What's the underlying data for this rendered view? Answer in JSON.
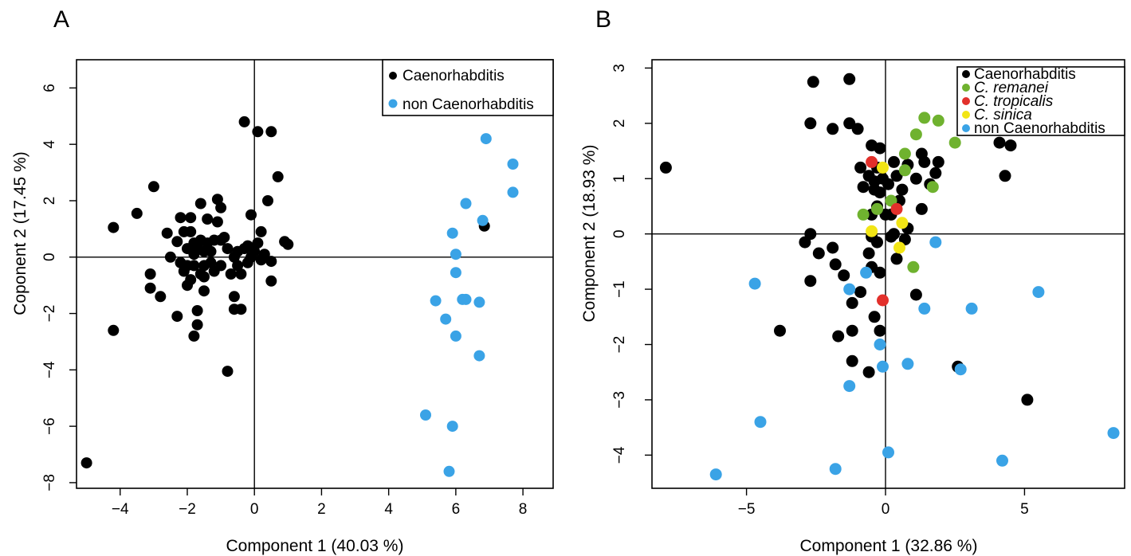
{
  "chart_data": [
    {
      "type": "scatter",
      "panel_label": "A",
      "title": "",
      "xlabel": "Component 1 (40.03 %)",
      "ylabel": "Coponent 2  (17.45 %)",
      "xlim": [
        -5.3,
        8.9
      ],
      "ylim": [
        -8.2,
        7.0
      ],
      "xticks": [
        -4,
        -2,
        0,
        2,
        4,
        6,
        8
      ],
      "yticks": [
        -8,
        -6,
        -4,
        -2,
        0,
        2,
        4,
        6
      ],
      "xtick_labels": [
        "−4",
        "−2",
        "0",
        "2",
        "4",
        "6",
        "8"
      ],
      "ytick_labels": [
        "−8",
        "−6",
        "−4",
        "−2",
        "0",
        "2",
        "4",
        "6"
      ],
      "reference_lines": {
        "x": 0,
        "y": 0
      },
      "grid": false,
      "legend": {
        "position": "top-right",
        "entries": [
          {
            "label": "Caenorhabditis",
            "color": "#000000",
            "italic": false,
            "marker": "small"
          },
          {
            "label": "non Caenorhabditis",
            "color": "#3aa3e6",
            "italic": false,
            "marker": "small"
          }
        ]
      },
      "series": [
        {
          "name": "Caenorhabditis",
          "color": "#000000",
          "points": [
            [
              -5.0,
              -7.3
            ],
            [
              -4.2,
              1.05
            ],
            [
              -4.2,
              -2.6
            ],
            [
              -3.5,
              1.55
            ],
            [
              -3.0,
              2.5
            ],
            [
              -3.1,
              -1.1
            ],
            [
              -3.1,
              -0.6
            ],
            [
              -2.8,
              -1.4
            ],
            [
              -2.6,
              0.85
            ],
            [
              -2.3,
              0.55
            ],
            [
              -2.2,
              1.4
            ],
            [
              -2.3,
              -2.1
            ],
            [
              -2.1,
              -0.5
            ],
            [
              -2.0,
              0.3
            ],
            [
              -2.0,
              -1.0
            ],
            [
              -1.9,
              1.4
            ],
            [
              -1.9,
              0.9
            ],
            [
              -1.8,
              0.5
            ],
            [
              -1.8,
              -0.3
            ],
            [
              -1.7,
              -1.9
            ],
            [
              -1.7,
              -2.4
            ],
            [
              -1.6,
              1.9
            ],
            [
              -1.6,
              0.6
            ],
            [
              -1.5,
              -0.3
            ],
            [
              -1.5,
              -1.2
            ],
            [
              -1.4,
              1.35
            ],
            [
              -1.3,
              0.2
            ],
            [
              -1.2,
              0.6
            ],
            [
              -1.1,
              2.05
            ],
            [
              -1.1,
              1.25
            ],
            [
              -1.0,
              1.75
            ],
            [
              -0.9,
              0.7
            ],
            [
              -0.8,
              -4.05
            ],
            [
              -0.7,
              -0.6
            ],
            [
              -0.6,
              -1.4
            ],
            [
              -0.6,
              -1.85
            ],
            [
              -0.5,
              0.2
            ],
            [
              -0.4,
              -0.6
            ],
            [
              -0.4,
              -1.85
            ],
            [
              -0.3,
              4.8
            ],
            [
              -0.2,
              0.4
            ],
            [
              -0.1,
              1.5
            ],
            [
              -0.1,
              0.0
            ],
            [
              0.1,
              0.5
            ],
            [
              0.1,
              4.45
            ],
            [
              0.2,
              0.9
            ],
            [
              0.3,
              0.1
            ],
            [
              0.4,
              2.0
            ],
            [
              0.5,
              -0.85
            ],
            [
              0.5,
              4.45
            ],
            [
              0.5,
              -0.15
            ],
            [
              0.7,
              2.85
            ],
            [
              0.9,
              0.55
            ],
            [
              1.0,
              0.45
            ],
            [
              -1.8,
              0.1
            ],
            [
              -1.5,
              0.2
            ],
            [
              -2.0,
              -0.3
            ],
            [
              -1.2,
              -0.5
            ],
            [
              -0.8,
              0.3
            ],
            [
              -1.4,
              0.5
            ],
            [
              -1.0,
              -0.3
            ],
            [
              -0.2,
              -0.2
            ],
            [
              0.2,
              -0.1
            ],
            [
              -2.5,
              0.0
            ],
            [
              -2.1,
              0.9
            ],
            [
              -1.7,
              0.35
            ],
            [
              -1.3,
              -0.2
            ],
            [
              -0.6,
              0.0
            ],
            [
              -0.3,
              0.3
            ],
            [
              0.0,
              0.2
            ],
            [
              -1.6,
              -0.6
            ],
            [
              -1.9,
              -0.8
            ],
            [
              -2.2,
              -0.2
            ],
            [
              -1.0,
              0.6
            ],
            [
              -0.5,
              -0.3
            ],
            [
              6.85,
              1.1
            ],
            [
              -1.8,
              -2.8
            ],
            [
              -1.5,
              -0.7
            ]
          ]
        },
        {
          "name": "non Caenorhabditis",
          "color": "#3aa3e6",
          "points": [
            [
              6.9,
              4.2
            ],
            [
              7.7,
              3.3
            ],
            [
              7.7,
              2.3
            ],
            [
              6.3,
              1.9
            ],
            [
              6.8,
              1.3
            ],
            [
              5.9,
              0.85
            ],
            [
              6.0,
              0.1
            ],
            [
              6.0,
              -0.55
            ],
            [
              6.2,
              -1.5
            ],
            [
              6.3,
              -1.5
            ],
            [
              5.4,
              -1.55
            ],
            [
              6.7,
              -1.6
            ],
            [
              5.7,
              -2.2
            ],
            [
              6.0,
              -2.8
            ],
            [
              6.7,
              -3.5
            ],
            [
              5.1,
              -5.6
            ],
            [
              5.9,
              -6.0
            ],
            [
              5.8,
              -7.6
            ]
          ]
        }
      ]
    },
    {
      "type": "scatter",
      "panel_label": "B",
      "title": "",
      "xlabel": "Component 1 (32.86 %)",
      "ylabel": "Component 2 (18.93 %)",
      "xlim": [
        -8.4,
        8.6
      ],
      "ylim": [
        -4.6,
        3.15
      ],
      "xticks": [
        -5,
        0,
        5
      ],
      "yticks": [
        -4,
        -3,
        -2,
        -1,
        0,
        1,
        2,
        3
      ],
      "xtick_labels": [
        "−5",
        "0",
        "5"
      ],
      "ytick_labels": [
        "−4",
        "−3",
        "−2",
        "−1",
        "0",
        "1",
        "2",
        "3"
      ],
      "reference_lines": {
        "x": 0,
        "y": 0
      },
      "grid": false,
      "legend": {
        "position": "top-right",
        "entries": [
          {
            "label": "Caenorhabditis",
            "color": "#000000",
            "italic": false,
            "marker": "small"
          },
          {
            "label": "C. remanei",
            "color": "#6fb22f",
            "italic": true,
            "marker": "small"
          },
          {
            "label": "C. tropicalis",
            "color": "#e2302b",
            "italic": true,
            "marker": "small"
          },
          {
            "label": "C. sinica",
            "color": "#f2e515",
            "italic": true,
            "marker": "small"
          },
          {
            "label": "non Caenorhabditis",
            "color": "#3aa3e6",
            "italic": false,
            "marker": "small"
          }
        ]
      },
      "series": [
        {
          "name": "Caenorhabditis",
          "color": "#000000",
          "points": [
            [
              -7.9,
              1.2
            ],
            [
              -2.6,
              2.75
            ],
            [
              -1.3,
              2.8
            ],
            [
              -2.7,
              2.0
            ],
            [
              -1.9,
              1.9
            ],
            [
              -1.3,
              2.0
            ],
            [
              -1.0,
              1.9
            ],
            [
              -0.5,
              1.6
            ],
            [
              -0.2,
              1.55
            ],
            [
              0.3,
              1.3
            ],
            [
              0.8,
              1.25
            ],
            [
              1.3,
              1.45
            ],
            [
              1.9,
              1.3
            ],
            [
              4.1,
              1.65
            ],
            [
              4.5,
              1.6
            ],
            [
              4.3,
              1.05
            ],
            [
              1.4,
              1.3
            ],
            [
              1.1,
              1.0
            ],
            [
              1.6,
              0.9
            ],
            [
              1.8,
              1.1
            ],
            [
              -0.9,
              1.2
            ],
            [
              -0.6,
              1.05
            ],
            [
              -0.4,
              0.95
            ],
            [
              0.1,
              0.9
            ],
            [
              -0.2,
              0.75
            ],
            [
              0.6,
              0.8
            ],
            [
              -0.3,
              0.5
            ],
            [
              1.3,
              0.45
            ],
            [
              0.0,
              0.35
            ],
            [
              -0.5,
              0.35
            ],
            [
              -2.9,
              -0.15
            ],
            [
              -2.7,
              0.0
            ],
            [
              -2.4,
              -0.35
            ],
            [
              -1.9,
              -0.25
            ],
            [
              -0.5,
              -0.05
            ],
            [
              -0.3,
              -0.15
            ],
            [
              0.2,
              -0.05
            ],
            [
              0.3,
              0.0
            ],
            [
              0.7,
              -0.1
            ],
            [
              0.8,
              0.1
            ],
            [
              -2.7,
              -0.85
            ],
            [
              -1.8,
              -0.55
            ],
            [
              -1.5,
              -0.75
            ],
            [
              -1.2,
              -1.25
            ],
            [
              -0.9,
              -1.05
            ],
            [
              -0.5,
              -0.6
            ],
            [
              -0.2,
              -0.7
            ],
            [
              0.4,
              -0.45
            ],
            [
              -0.6,
              -0.35
            ],
            [
              1.1,
              -1.1
            ],
            [
              -3.8,
              -1.75
            ],
            [
              -1.7,
              -1.85
            ],
            [
              -1.2,
              -1.75
            ],
            [
              -0.4,
              -1.5
            ],
            [
              -0.2,
              -1.75
            ],
            [
              -1.2,
              -2.3
            ],
            [
              -0.6,
              -2.5
            ],
            [
              2.6,
              -2.4
            ],
            [
              5.1,
              -3.0
            ],
            [
              -0.4,
              0.8
            ],
            [
              -0.1,
              1.0
            ],
            [
              0.5,
              0.6
            ],
            [
              0.2,
              0.35
            ],
            [
              -0.8,
              0.85
            ],
            [
              -0.3,
              1.2
            ],
            [
              0.4,
              1.05
            ]
          ]
        },
        {
          "name": "C. remanei",
          "color": "#6fb22f",
          "points": [
            [
              1.4,
              2.1
            ],
            [
              1.9,
              2.05
            ],
            [
              1.1,
              1.8
            ],
            [
              2.5,
              1.65
            ],
            [
              0.7,
              1.45
            ],
            [
              0.7,
              1.15
            ],
            [
              1.7,
              0.85
            ],
            [
              0.2,
              0.6
            ],
            [
              -0.3,
              0.45
            ],
            [
              -0.8,
              0.35
            ],
            [
              1.0,
              -0.6
            ]
          ]
        },
        {
          "name": "C. tropicalis",
          "color": "#e2302b",
          "points": [
            [
              -0.5,
              1.3
            ],
            [
              0.4,
              0.45
            ],
            [
              -0.1,
              -1.2
            ]
          ]
        },
        {
          "name": "C. sinica",
          "color": "#f2e515",
          "points": [
            [
              -0.1,
              1.2
            ],
            [
              0.6,
              0.2
            ],
            [
              -0.5,
              0.05
            ],
            [
              0.5,
              -0.25
            ]
          ]
        },
        {
          "name": "non Caenorhabditis",
          "color": "#3aa3e6",
          "points": [
            [
              -4.7,
              -0.9
            ],
            [
              -1.3,
              -1.0
            ],
            [
              -0.7,
              -0.7
            ],
            [
              1.8,
              -0.15
            ],
            [
              1.4,
              -1.35
            ],
            [
              3.1,
              -1.35
            ],
            [
              5.5,
              -1.05
            ],
            [
              -0.2,
              -2.0
            ],
            [
              -0.1,
              -2.4
            ],
            [
              0.8,
              -2.35
            ],
            [
              2.7,
              -2.45
            ],
            [
              -1.3,
              -2.75
            ],
            [
              -4.5,
              -3.4
            ],
            [
              8.2,
              -3.6
            ],
            [
              -6.1,
              -4.35
            ],
            [
              -1.8,
              -4.25
            ],
            [
              0.1,
              -3.95
            ],
            [
              4.2,
              -4.1
            ]
          ]
        }
      ]
    }
  ]
}
